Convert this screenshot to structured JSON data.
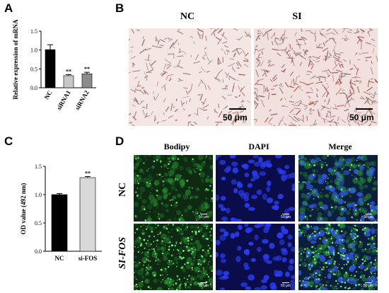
{
  "panels": {
    "A": "A",
    "B": "B",
    "C": "C",
    "D": "D"
  },
  "panel_b": {
    "col_labels": [
      "NC",
      "SI"
    ],
    "scale_label": "50 μm"
  },
  "panel_d": {
    "col_labels": [
      "Bodipy",
      "DAPI",
      "Merge"
    ],
    "row_labels": [
      "NC",
      "SI-",
      "FOS"
    ],
    "scale_label": "50 μm"
  },
  "chart_data": [
    {
      "type": "bar",
      "ylabel": "Relative expression of mRNA",
      "categories": [
        "NC",
        "siRNA1",
        "siRNA2"
      ],
      "values": [
        1.01,
        0.32,
        0.37
      ],
      "errors": [
        0.13,
        0.03,
        0.04
      ],
      "significance": [
        "",
        "**",
        "**"
      ],
      "colors": [
        "#000000",
        "#c8c8c8",
        "#8c8c8c"
      ],
      "ylim": [
        0,
        1.5
      ],
      "yticks": [
        "0.0",
        "0.5",
        "1.0",
        "1.5"
      ]
    },
    {
      "type": "bar",
      "ylabel": "OD value (492 nm)",
      "categories": [
        "NC",
        "si-FOS"
      ],
      "values": [
        1.0,
        1.3
      ],
      "errors": [
        0.02,
        0.02
      ],
      "significance": [
        "",
        "**"
      ],
      "colors": [
        "#000000",
        "#d9d9d9"
      ],
      "ylim": [
        0,
        1.5
      ],
      "yticks": [
        "0.0",
        "0.5",
        "1.0",
        "1.5"
      ]
    }
  ]
}
